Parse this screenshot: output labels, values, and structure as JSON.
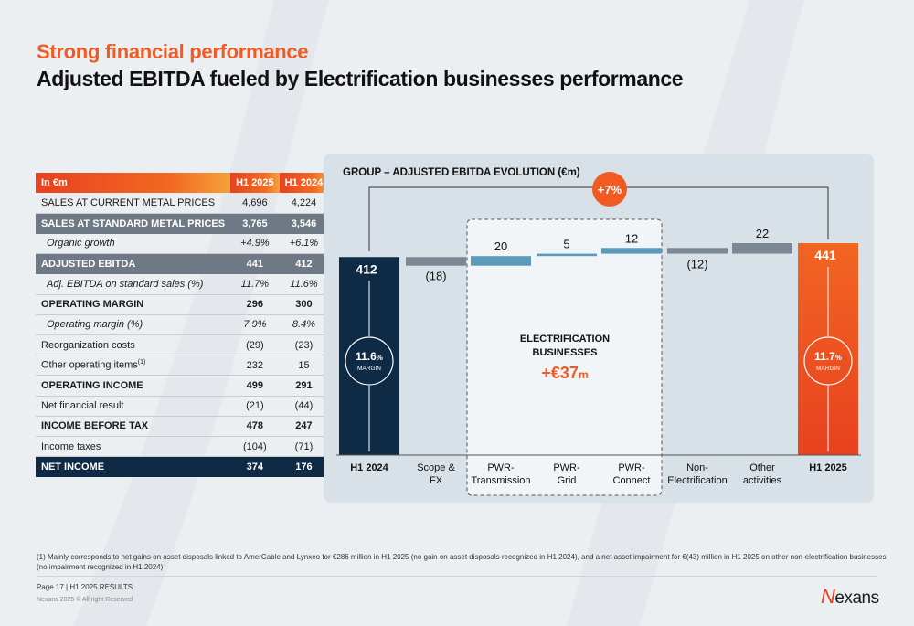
{
  "header": {
    "title": "Strong financial performance",
    "subtitle": "Adjusted EBITDA fueled by Electrification businesses performance"
  },
  "table": {
    "header": {
      "label": "In €m",
      "col1": "H1 2025",
      "col2": "H1 2024"
    },
    "rows": [
      {
        "label": "SALES AT CURRENT METAL PRICES",
        "v1": "4,696",
        "v2": "4,224",
        "style": "plain"
      },
      {
        "label": "SALES AT STANDARD METAL PRICES",
        "v1": "3,765",
        "v2": "3,546",
        "style": "grey"
      },
      {
        "label": "Organic growth",
        "v1": "+4.9%",
        "v2": "+6.1%",
        "style": "ital"
      },
      {
        "label": "ADJUSTED EBITDA",
        "v1": "441",
        "v2": "412",
        "style": "grey"
      },
      {
        "label": "Adj. EBITDA on standard sales (%)",
        "v1": "11.7%",
        "v2": "11.6%",
        "style": "ital"
      },
      {
        "label": "OPERATING MARGIN",
        "v1": "296",
        "v2": "300",
        "style": "bold"
      },
      {
        "label": "Operating margin (%)",
        "v1": "7.9%",
        "v2": "8.4%",
        "style": "ital"
      },
      {
        "label": "Reorganization costs",
        "v1": "(29)",
        "v2": "(23)",
        "style": "plain"
      },
      {
        "label": "Other operating items",
        "sup": "(1)",
        "v1": "232",
        "v2": "15",
        "style": "plain"
      },
      {
        "label": "OPERATING INCOME",
        "v1": "499",
        "v2": "291",
        "style": "bold"
      },
      {
        "label": "Net financial result",
        "v1": "(21)",
        "v2": "(44)",
        "style": "plain"
      },
      {
        "label": "INCOME BEFORE TAX",
        "v1": "478",
        "v2": "247",
        "style": "bold"
      },
      {
        "label": "Income taxes",
        "v1": "(104)",
        "v2": "(71)",
        "style": "plain"
      },
      {
        "label": "NET INCOME",
        "v1": "374",
        "v2": "176",
        "style": "navy"
      }
    ]
  },
  "chart": {
    "title": "GROUP – ADJUSTED EBITDA EVOLUTION (€m)",
    "growth_badge": "+7%",
    "electrification_label_1": "ELECTRIFICATION",
    "electrification_label_2": "BUSINESSES",
    "electrification_value": "+€37",
    "electrification_unit": "m",
    "margin_2024_value": "11.6",
    "margin_2024_unit": "%",
    "margin_2025_value": "11.7",
    "margin_2025_unit": "%",
    "margin_label": "MARGIN",
    "colors": {
      "navy": "#0f2a44",
      "orange": "#f15a22",
      "blue": "#5b9ab8",
      "grey": "#7c8893"
    }
  },
  "chart_data": {
    "type": "bar",
    "categories": [
      "H1 2024",
      "Scope & FX",
      "PWR-Transmission",
      "PWR-Grid",
      "PWR-Connect",
      "Non-Electrification",
      "Other activities",
      "H1 2025"
    ],
    "category_lines": [
      [
        "H1 2024"
      ],
      [
        "Scope &",
        "FX"
      ],
      [
        "PWR-",
        "Transmission"
      ],
      [
        "PWR-",
        "Grid"
      ],
      [
        "PWR-",
        "Connect"
      ],
      [
        "Non-",
        "Electrification"
      ],
      [
        "Other",
        "activities"
      ],
      [
        "H1 2025"
      ]
    ],
    "values": [
      412,
      -18,
      20,
      5,
      12,
      -12,
      22,
      441
    ],
    "labels": [
      "412",
      "(18)",
      "20",
      "5",
      "12",
      "(12)",
      "22",
      "441"
    ],
    "kinds": [
      "total",
      "delta",
      "delta",
      "delta",
      "delta",
      "delta",
      "delta",
      "total"
    ],
    "ylim": [
      0,
      441
    ]
  },
  "footer": {
    "footnote": "(1)  Mainly corresponds to net gains on asset disposals linked to AmerCable and Lynxeo for €286 million in H1 2025 (no gain on asset disposals recognized in H1 2024), and a net asset impairment for €(43) million in H1 2025 on other non-electrification businesses (no impairment recognized in H1 2024)",
    "page": "Page 17  |  H1 2025 RESULTS",
    "copyright": "Nexans 2025 © All right Reserved",
    "logo_n": "N",
    "logo_rest": "exans"
  }
}
